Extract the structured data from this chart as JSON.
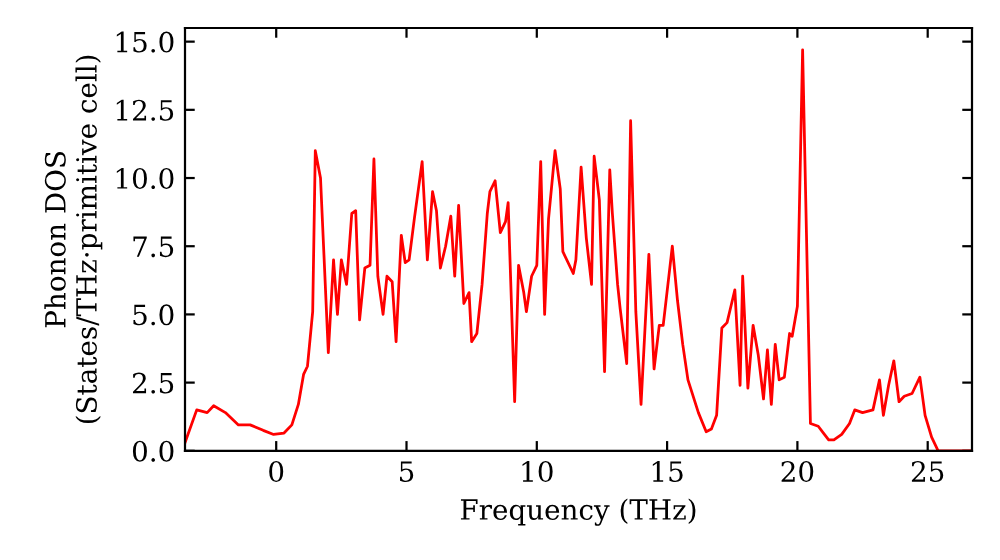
{
  "chart_data": {
    "type": "line",
    "xlabel": "Frequency (THz)",
    "ylabel": "Phonon DOS\n(States/THz·primitive cell)",
    "xlim": [
      -3.5,
      26.7
    ],
    "ylim": [
      0,
      15.5
    ],
    "xticks": [
      0,
      5,
      10,
      15,
      20,
      25
    ],
    "yticks": [
      {
        "value": 0,
        "label": "0.0"
      },
      2.5,
      {
        "value": 5,
        "label": "5.0"
      },
      7.5,
      {
        "value": 10,
        "label": "10.0"
      },
      12.5,
      {
        "value": 15,
        "label": "15.0"
      }
    ],
    "grid": false,
    "legend": false,
    "series": [
      {
        "color": "#ff0000",
        "x": [
          -3.5,
          -3.05,
          -2.65,
          -2.4,
          -1.95,
          -1.45,
          -1.0,
          -0.5,
          -0.1,
          0.3,
          0.6,
          0.85,
          1.05,
          1.2,
          1.4,
          1.5,
          1.7,
          2.0,
          2.2,
          2.35,
          2.5,
          2.7,
          2.9,
          3.05,
          3.2,
          3.4,
          3.6,
          3.75,
          3.9,
          4.1,
          4.25,
          4.45,
          4.6,
          4.8,
          4.95,
          5.1,
          5.3,
          5.6,
          5.8,
          6.0,
          6.15,
          6.3,
          6.5,
          6.7,
          6.85,
          7.0,
          7.2,
          7.4,
          7.5,
          7.7,
          7.9,
          8.1,
          8.2,
          8.4,
          8.6,
          8.8,
          8.9,
          9.15,
          9.3,
          9.5,
          9.6,
          9.8,
          10.0,
          10.15,
          10.3,
          10.45,
          10.7,
          10.9,
          11.0,
          11.4,
          11.5,
          11.7,
          11.9,
          12.1,
          12.2,
          12.4,
          12.6,
          12.8,
          12.9,
          13.1,
          13.2,
          13.45,
          13.6,
          13.8,
          14.0,
          14.3,
          14.5,
          14.7,
          14.85,
          15.2,
          15.4,
          15.6,
          15.8,
          16.2,
          16.5,
          16.7,
          16.9,
          17.1,
          17.3,
          17.45,
          17.6,
          17.8,
          17.9,
          18.1,
          18.3,
          18.5,
          18.7,
          18.85,
          19.0,
          19.15,
          19.3,
          19.5,
          19.7,
          19.8,
          20.0,
          20.2,
          20.5,
          20.8,
          21.0,
          21.2,
          21.4,
          21.7,
          22.0,
          22.2,
          22.5,
          22.9,
          23.15,
          23.3,
          23.5,
          23.7,
          23.9,
          24.1,
          24.4,
          24.7,
          24.9,
          25.15,
          25.4,
          26.7
        ],
        "values": [
          0.3,
          1.5,
          1.4,
          1.65,
          1.4,
          0.95,
          0.95,
          0.75,
          0.6,
          0.65,
          0.95,
          1.7,
          2.8,
          3.1,
          5.1,
          11.0,
          10.0,
          3.6,
          7.0,
          5.0,
          7.0,
          6.1,
          8.7,
          8.8,
          4.8,
          6.7,
          6.8,
          10.7,
          6.4,
          5.0,
          6.4,
          6.2,
          4.0,
          7.9,
          6.9,
          7.0,
          8.5,
          10.6,
          7.0,
          9.5,
          8.8,
          6.7,
          7.5,
          8.6,
          6.4,
          9.0,
          5.4,
          5.8,
          4.0,
          4.3,
          6.1,
          8.7,
          9.5,
          9.9,
          8.0,
          8.4,
          9.1,
          1.8,
          6.8,
          5.8,
          5.1,
          6.4,
          6.8,
          10.6,
          5.0,
          8.5,
          11.0,
          9.6,
          7.3,
          6.5,
          7.0,
          10.4,
          7.8,
          6.1,
          10.8,
          9.2,
          2.9,
          10.3,
          8.7,
          6.1,
          5.2,
          3.2,
          12.1,
          5.1,
          1.7,
          7.2,
          3.0,
          4.6,
          4.6,
          7.5,
          5.5,
          3.9,
          2.6,
          1.4,
          0.7,
          0.8,
          1.3,
          4.5,
          4.7,
          5.3,
          5.9,
          2.4,
          6.4,
          2.3,
          4.6,
          3.5,
          1.9,
          3.7,
          1.7,
          3.9,
          2.6,
          2.7,
          4.3,
          4.2,
          5.3,
          14.7,
          1.0,
          0.9,
          0.65,
          0.4,
          0.4,
          0.6,
          1.0,
          1.5,
          1.4,
          1.5,
          2.6,
          1.3,
          2.4,
          3.3,
          1.8,
          2.0,
          2.1,
          2.7,
          1.3,
          0.5,
          0,
          0
        ]
      }
    ]
  }
}
